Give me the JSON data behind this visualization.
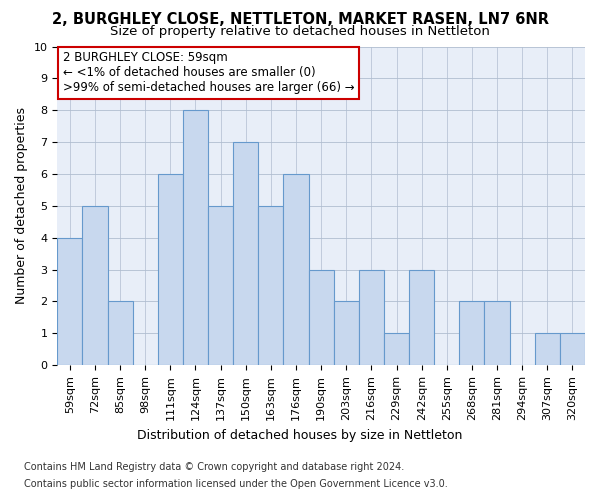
{
  "title1": "2, BURGHLEY CLOSE, NETTLETON, MARKET RASEN, LN7 6NR",
  "title2": "Size of property relative to detached houses in Nettleton",
  "xlabel": "Distribution of detached houses by size in Nettleton",
  "ylabel": "Number of detached properties",
  "categories": [
    "59sqm",
    "72sqm",
    "85sqm",
    "98sqm",
    "111sqm",
    "124sqm",
    "137sqm",
    "150sqm",
    "163sqm",
    "176sqm",
    "190sqm",
    "203sqm",
    "216sqm",
    "229sqm",
    "242sqm",
    "255sqm",
    "268sqm",
    "281sqm",
    "294sqm",
    "307sqm",
    "320sqm"
  ],
  "values": [
    4,
    5,
    2,
    0,
    6,
    8,
    5,
    7,
    5,
    6,
    3,
    2,
    3,
    1,
    3,
    0,
    2,
    2,
    0,
    1,
    1
  ],
  "bar_color": "#c8d8ee",
  "bar_edge_color": "#6699cc",
  "annotation_title": "2 BURGHLEY CLOSE: 59sqm",
  "annotation_line1": "← <1% of detached houses are smaller (0)",
  "annotation_line2": ">99% of semi-detached houses are larger (66) →",
  "annotation_box_color": "#ffffff",
  "annotation_box_edge": "#cc0000",
  "footer1": "Contains HM Land Registry data © Crown copyright and database right 2024.",
  "footer2": "Contains public sector information licensed under the Open Government Licence v3.0.",
  "ylim": [
    0,
    10
  ],
  "yticks": [
    0,
    1,
    2,
    3,
    4,
    5,
    6,
    7,
    8,
    9,
    10
  ],
  "background_color": "#ffffff",
  "plot_bg_color": "#e8eef8",
  "grid_color": "#b0bdd0",
  "title1_fontsize": 10.5,
  "title2_fontsize": 9.5,
  "ylabel_fontsize": 9,
  "xlabel_fontsize": 9,
  "tick_fontsize": 8,
  "footer_fontsize": 7,
  "annot_fontsize": 8.5
}
